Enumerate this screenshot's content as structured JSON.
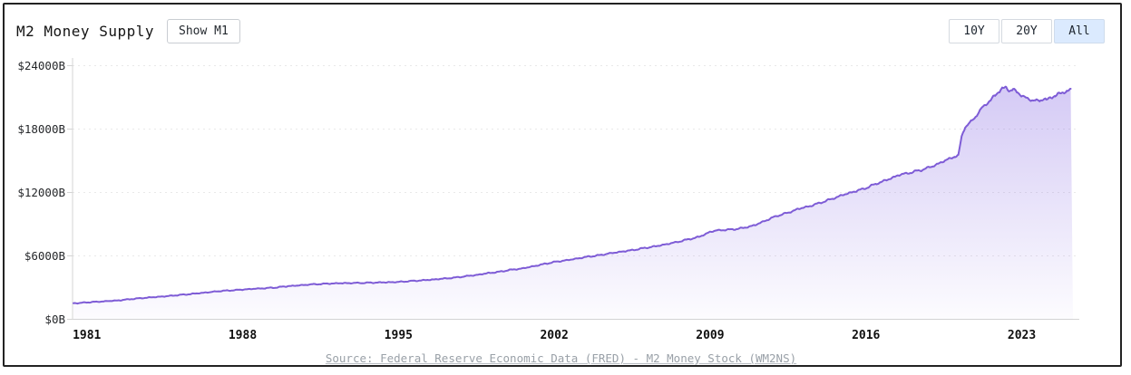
{
  "header": {
    "title": "M2 Money Supply",
    "show_m1_button": "Show M1",
    "range_buttons": [
      {
        "label": "10Y",
        "active": false
      },
      {
        "label": "20Y",
        "active": false
      },
      {
        "label": "All",
        "active": true
      }
    ]
  },
  "footer": {
    "source_text": "Source: Federal Reserve Economic Data (FRED) - M2 Money Stock (WM2NS)"
  },
  "colors": {
    "line": "#7e5cd6",
    "fill_top": "rgba(123,91,224,0.32)",
    "fill_bottom": "rgba(123,91,224,0.02)",
    "grid": "#e9e9e9",
    "axis": "#d4d4d4",
    "y_tick_label": "#26282b",
    "x_tick_label": "#101010",
    "active_range_bg": "#dbeafe"
  },
  "chart_data": {
    "type": "area",
    "title": "M2 Money Supply",
    "legend": "none",
    "grid": "horizontal-dashed",
    "x_range": [
      1980.4,
      2025.3
    ],
    "y_range": [
      0,
      24000
    ],
    "x_ticks": [
      1981,
      1988,
      1995,
      2002,
      2009,
      2016,
      2023
    ],
    "y_ticks": [
      {
        "value": 0,
        "label": "$0B"
      },
      {
        "value": 6000,
        "label": "$6000B"
      },
      {
        "value": 12000,
        "label": "$12000B"
      },
      {
        "value": 18000,
        "label": "$18000B"
      },
      {
        "value": 24000,
        "label": "$24000B"
      }
    ],
    "series": [
      {
        "name": "M2 Money Stock (WM2NS), billions of dollars",
        "points": [
          [
            1980.4,
            1510
          ],
          [
            1981,
            1600
          ],
          [
            1981.5,
            1660
          ],
          [
            1982,
            1730
          ],
          [
            1982.5,
            1800
          ],
          [
            1983,
            1920
          ],
          [
            1983.5,
            2010
          ],
          [
            1984,
            2090
          ],
          [
            1984.5,
            2170
          ],
          [
            1985,
            2270
          ],
          [
            1985.5,
            2360
          ],
          [
            1986,
            2460
          ],
          [
            1986.5,
            2560
          ],
          [
            1987,
            2680
          ],
          [
            1987.5,
            2740
          ],
          [
            1988,
            2810
          ],
          [
            1988.5,
            2880
          ],
          [
            1989,
            2940
          ],
          [
            1989.5,
            3010
          ],
          [
            1990,
            3130
          ],
          [
            1990.5,
            3200
          ],
          [
            1991,
            3290
          ],
          [
            1991.5,
            3340
          ],
          [
            1992,
            3390
          ],
          [
            1992.5,
            3420
          ],
          [
            1993,
            3430
          ],
          [
            1993.5,
            3450
          ],
          [
            1994,
            3480
          ],
          [
            1994.5,
            3500
          ],
          [
            1995,
            3530
          ],
          [
            1995.5,
            3610
          ],
          [
            1996,
            3680
          ],
          [
            1996.5,
            3750
          ],
          [
            1997,
            3840
          ],
          [
            1997.5,
            3930
          ],
          [
            1998,
            4070
          ],
          [
            1998.5,
            4190
          ],
          [
            1999,
            4360
          ],
          [
            1999.5,
            4480
          ],
          [
            2000,
            4670
          ],
          [
            2000.5,
            4790
          ],
          [
            2001,
            4990
          ],
          [
            2001.5,
            5210
          ],
          [
            2002,
            5420
          ],
          [
            2002.5,
            5570
          ],
          [
            2003,
            5740
          ],
          [
            2003.5,
            5920
          ],
          [
            2004,
            6050
          ],
          [
            2004.5,
            6240
          ],
          [
            2005,
            6400
          ],
          [
            2005.5,
            6540
          ],
          [
            2006,
            6720
          ],
          [
            2006.5,
            6890
          ],
          [
            2007,
            7090
          ],
          [
            2007.5,
            7310
          ],
          [
            2008,
            7550
          ],
          [
            2008.5,
            7790
          ],
          [
            2009,
            8270
          ],
          [
            2009.25,
            8390
          ],
          [
            2009.5,
            8440
          ],
          [
            2010,
            8500
          ],
          [
            2010.5,
            8640
          ],
          [
            2011,
            8900
          ],
          [
            2011.5,
            9350
          ],
          [
            2012,
            9790
          ],
          [
            2012.5,
            10080
          ],
          [
            2013,
            10470
          ],
          [
            2013.5,
            10720
          ],
          [
            2014,
            11070
          ],
          [
            2014.5,
            11410
          ],
          [
            2015,
            11790
          ],
          [
            2015.5,
            12100
          ],
          [
            2016,
            12420
          ],
          [
            2016.5,
            12860
          ],
          [
            2017,
            13230
          ],
          [
            2017.5,
            13670
          ],
          [
            2018,
            13880
          ],
          [
            2018.5,
            14140
          ],
          [
            2019,
            14480
          ],
          [
            2019.5,
            14960
          ],
          [
            2020,
            15420
          ],
          [
            2020.15,
            15500
          ],
          [
            2020.3,
            17300
          ],
          [
            2020.45,
            18200
          ],
          [
            2020.6,
            18450
          ],
          [
            2020.8,
            18850
          ],
          [
            2021,
            19400
          ],
          [
            2021.2,
            20000
          ],
          [
            2021.4,
            20400
          ],
          [
            2021.6,
            20750
          ],
          [
            2021.8,
            21200
          ],
          [
            2022,
            21600
          ],
          [
            2022.15,
            21850
          ],
          [
            2022.3,
            21940
          ],
          [
            2022.45,
            21650
          ],
          [
            2022.6,
            21750
          ],
          [
            2022.8,
            21500
          ],
          [
            2023,
            21210
          ],
          [
            2023.2,
            20950
          ],
          [
            2023.4,
            20800
          ],
          [
            2023.6,
            20700
          ],
          [
            2023.8,
            20660
          ],
          [
            2024,
            20870
          ],
          [
            2024.1,
            20750
          ],
          [
            2024.3,
            21010
          ],
          [
            2024.5,
            21160
          ],
          [
            2024.7,
            21350
          ],
          [
            2024.9,
            21480
          ],
          [
            2025.05,
            21550
          ],
          [
            2025.2,
            21750
          ]
        ]
      }
    ]
  }
}
